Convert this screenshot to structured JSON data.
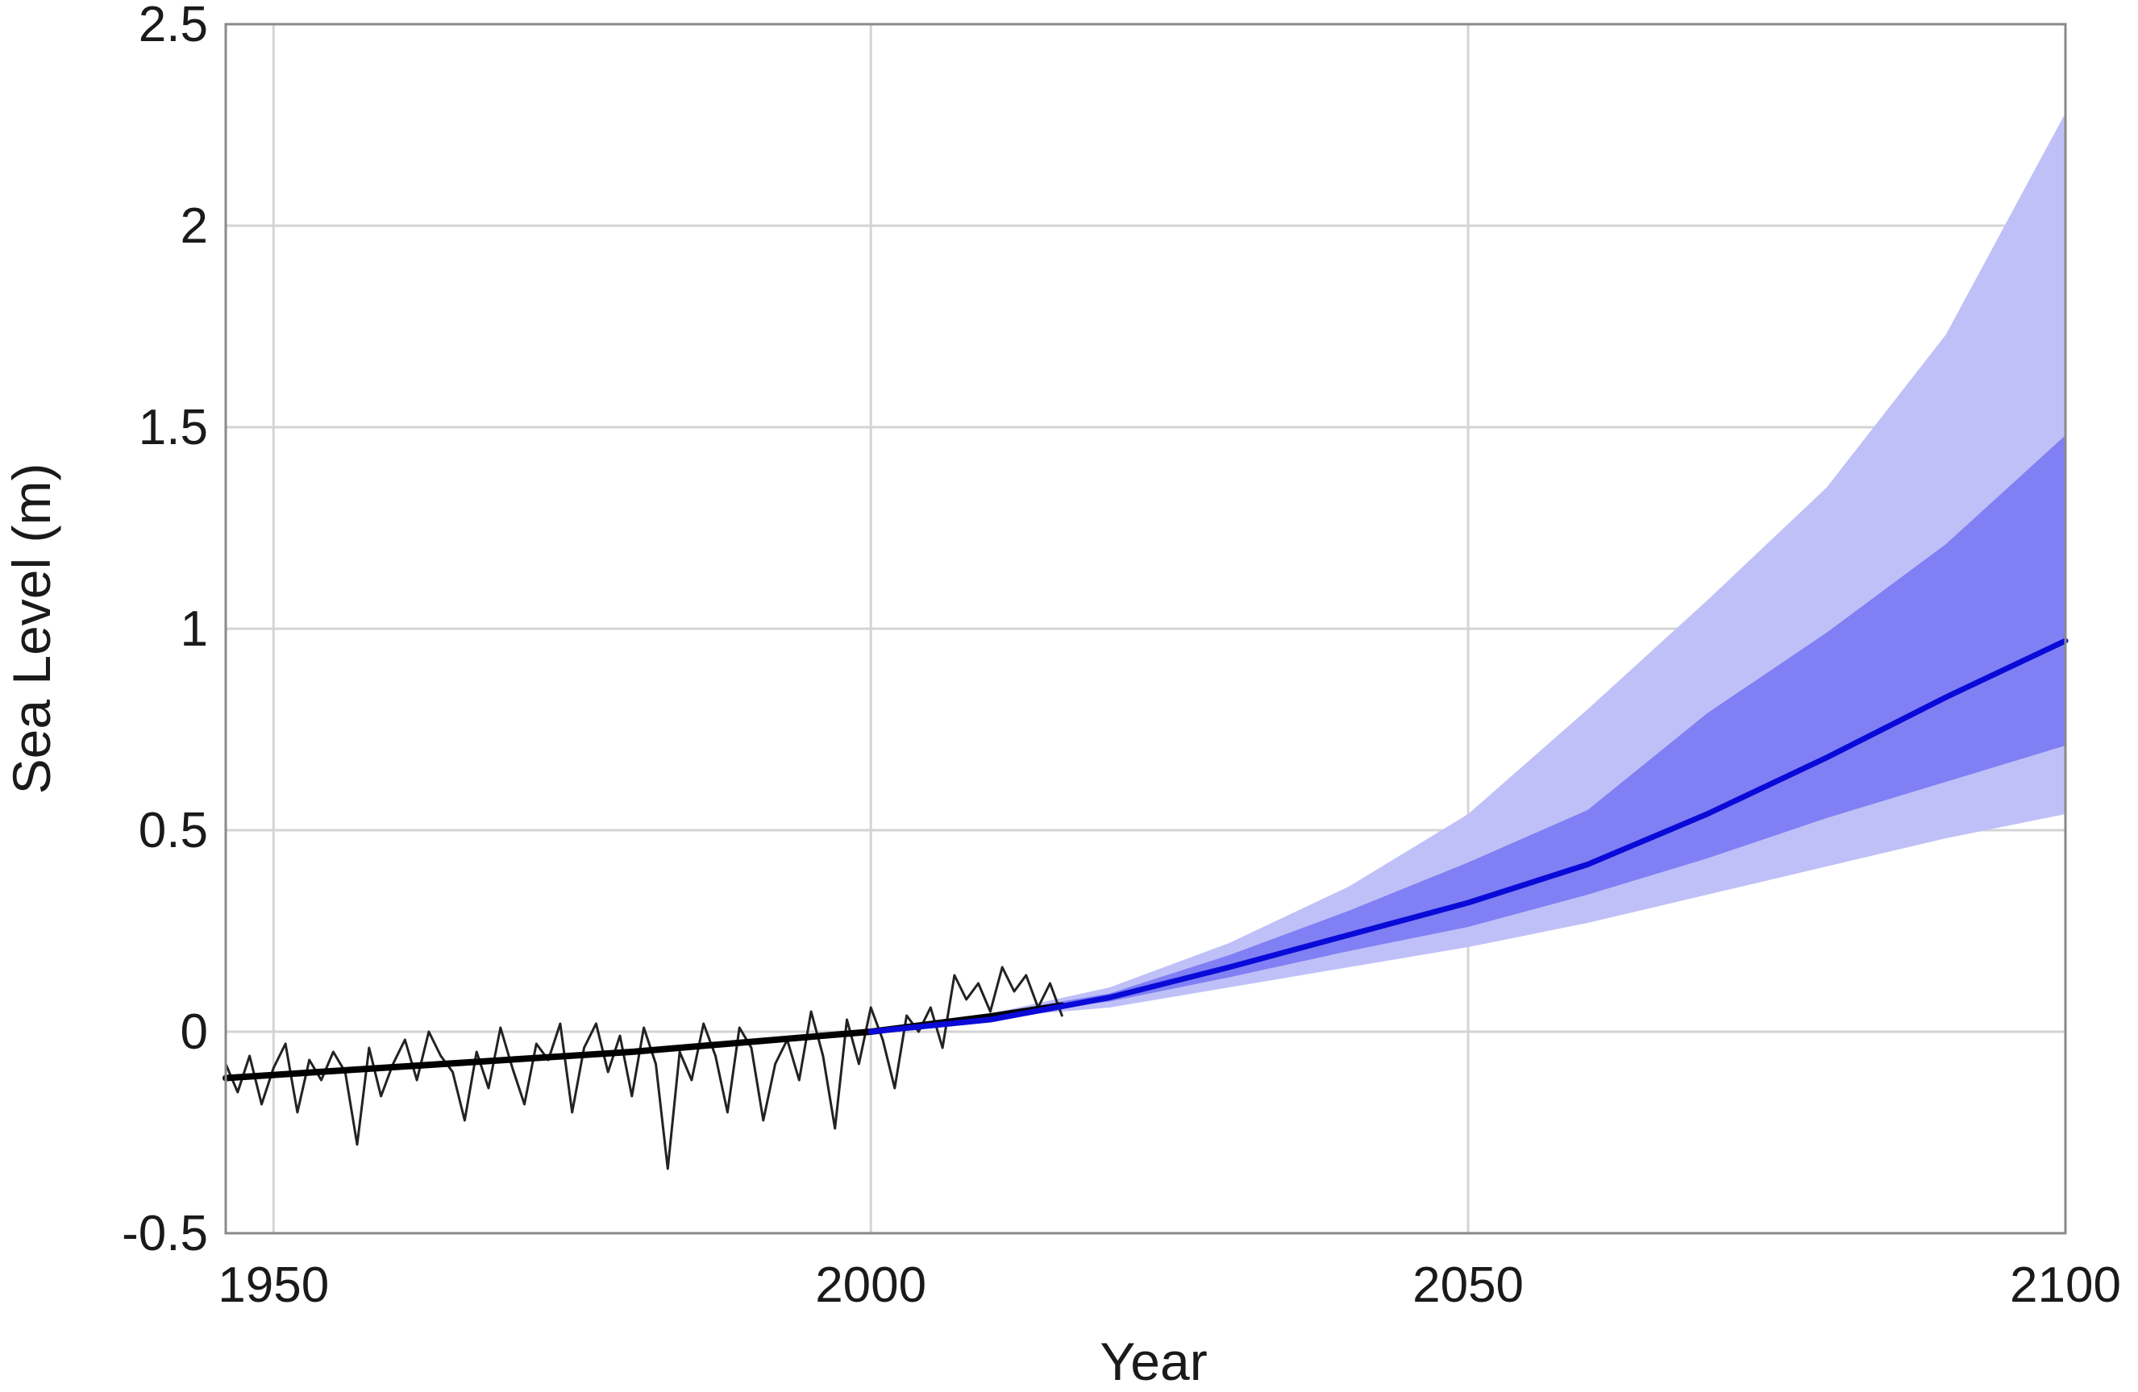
{
  "chart_data": {
    "type": "line",
    "title": "",
    "xlabel": "Year",
    "ylabel": "Sea Level (m)",
    "xlim": [
      1946,
      2100
    ],
    "ylim": [
      -0.5,
      2.5
    ],
    "xticks": [
      1950,
      2000,
      2050,
      2100
    ],
    "yticks": [
      -0.5,
      0,
      0.5,
      1,
      1.5,
      2,
      2.5
    ],
    "xtick_labels": [
      "1950",
      "2000",
      "2050",
      "2100"
    ],
    "ytick_labels": [
      "-0.5",
      "0",
      "0.5",
      "1",
      "1.5",
      "2",
      "2.5"
    ],
    "grid": true,
    "legend": "none",
    "colors": {
      "observed_raw": "#222222",
      "observed_fit": "#000000",
      "projection": "#0a0ad8",
      "band_outer": "#c0c0f8",
      "band_inner": "#8080f4",
      "grid": "#d4d4d4",
      "frame": "#8a8a8a"
    },
    "series": [
      {
        "kind": "raw",
        "x": [
          1946,
          1947,
          1948,
          1949,
          1950,
          1951,
          1952,
          1953,
          1954,
          1955,
          1956,
          1957,
          1958,
          1959,
          1960,
          1961,
          1962,
          1963,
          1964,
          1965,
          1966,
          1967,
          1968,
          1969,
          1970,
          1971,
          1972,
          1973,
          1974,
          1975,
          1976,
          1977,
          1978,
          1979,
          1980,
          1981,
          1982,
          1983,
          1984,
          1985,
          1986,
          1987,
          1988,
          1989,
          1990,
          1991,
          1992,
          1993,
          1994,
          1995,
          1996,
          1997,
          1998,
          1999,
          2000,
          2001,
          2002,
          2003,
          2004,
          2005,
          2006,
          2007,
          2008,
          2009,
          2010,
          2011,
          2012,
          2013,
          2014,
          2015,
          2016
        ],
        "y": [
          -0.08,
          -0.15,
          -0.06,
          -0.18,
          -0.09,
          -0.03,
          -0.2,
          -0.07,
          -0.12,
          -0.05,
          -0.1,
          -0.28,
          -0.04,
          -0.16,
          -0.08,
          -0.02,
          -0.12,
          0.0,
          -0.06,
          -0.1,
          -0.22,
          -0.05,
          -0.14,
          0.01,
          -0.09,
          -0.18,
          -0.03,
          -0.07,
          0.02,
          -0.2,
          -0.04,
          0.02,
          -0.1,
          -0.01,
          -0.16,
          0.01,
          -0.08,
          -0.34,
          -0.05,
          -0.12,
          0.02,
          -0.06,
          -0.2,
          0.01,
          -0.04,
          -0.22,
          -0.08,
          -0.02,
          -0.12,
          0.05,
          -0.06,
          -0.24,
          0.03,
          -0.08,
          0.06,
          -0.02,
          -0.14,
          0.04,
          0.0,
          0.06,
          -0.04,
          0.14,
          0.08,
          0.12,
          0.05,
          0.16,
          0.1,
          0.14,
          0.06,
          0.12,
          0.04
        ]
      },
      {
        "kind": "fit",
        "x": [
          1946,
          1960,
          1980,
          2000,
          2010,
          2016
        ],
        "y": [
          -0.115,
          -0.088,
          -0.05,
          0.0,
          0.038,
          0.065
        ]
      },
      {
        "kind": "projection",
        "x": [
          2000,
          2010,
          2020,
          2030,
          2040,
          2050,
          2060,
          2070,
          2080,
          2090,
          2100
        ],
        "y": [
          0.0,
          0.03,
          0.085,
          0.16,
          0.24,
          0.32,
          0.415,
          0.54,
          0.68,
          0.83,
          0.97
        ]
      }
    ],
    "bands": [
      {
        "kind": "outer",
        "x": [
          2000,
          2010,
          2020,
          2030,
          2040,
          2050,
          2060,
          2070,
          2080,
          2090,
          2100
        ],
        "lower": [
          0.0,
          0.035,
          0.06,
          0.11,
          0.16,
          0.21,
          0.27,
          0.34,
          0.41,
          0.48,
          0.54
        ],
        "upper": [
          0.0,
          0.045,
          0.11,
          0.22,
          0.36,
          0.54,
          0.8,
          1.07,
          1.35,
          1.73,
          2.28
        ]
      },
      {
        "kind": "inner",
        "x": [
          2000,
          2010,
          2020,
          2030,
          2040,
          2050,
          2060,
          2070,
          2080,
          2090,
          2100
        ],
        "lower": [
          0.0,
          0.04,
          0.075,
          0.135,
          0.2,
          0.26,
          0.34,
          0.43,
          0.53,
          0.62,
          0.71
        ],
        "upper": [
          0.0,
          0.045,
          0.095,
          0.19,
          0.3,
          0.42,
          0.55,
          0.79,
          0.99,
          1.21,
          1.48
        ]
      }
    ]
  }
}
